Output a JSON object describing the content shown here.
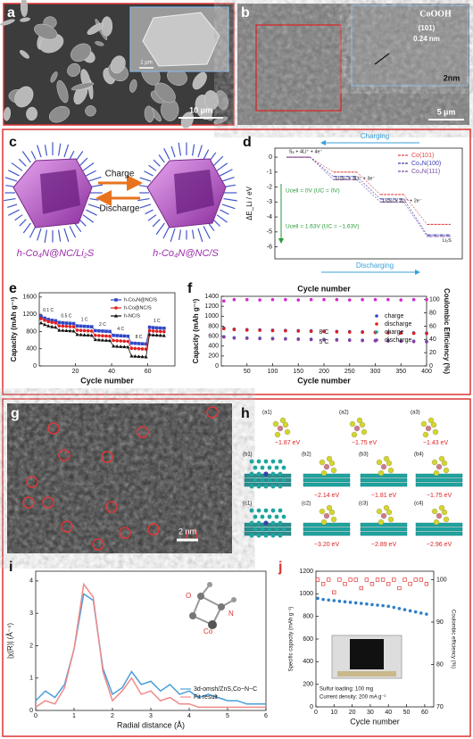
{
  "panels": {
    "a": {
      "label": "a",
      "scale_bar": "10 µm",
      "inset_scale_bar": "1 µm"
    },
    "b": {
      "label": "b",
      "phase": "CoOOH",
      "plane": "(101)",
      "spacing": "0.24 nm",
      "inset_scale_bar": "2nm",
      "scale_bar": "5 µm"
    },
    "c": {
      "label": "c",
      "charge": "Charge",
      "discharge": "Discharge",
      "left_caption": "h-Co₄N@NC/Li₂S",
      "right_caption": "h-Co₄N@NC/S"
    },
    "d": {
      "label": "d"
    },
    "e": {
      "label": "e"
    },
    "f": {
      "label": "f"
    },
    "g": {
      "label": "g",
      "scale_bar": "2 nm"
    },
    "h": {
      "label": "h",
      "structures": [
        {
          "id": "(a1)",
          "energy": "−1.87 eV"
        },
        {
          "id": "(a2)",
          "energy": "−1.75 eV"
        },
        {
          "id": "(a3)",
          "energy": "−1.43 eV"
        },
        {
          "id": "(b1)"
        },
        {
          "id": "(b2)",
          "energy": "−2.14 eV"
        },
        {
          "id": "(b3)",
          "energy": "−1.81 eV"
        },
        {
          "id": "(b4)",
          "energy": "−1.75 eV"
        },
        {
          "id": "(c1)"
        },
        {
          "id": "(c2)",
          "energy": "−3.20 eV"
        },
        {
          "id": "(c3)",
          "energy": "−2.89 eV"
        },
        {
          "id": "(c4)",
          "energy": "−2.96 eV"
        }
      ]
    },
    "i": {
      "label": "i",
      "inset_atoms": [
        "O",
        "N",
        "Co"
      ]
    },
    "j": {
      "label": "j"
    }
  },
  "chart_data": [
    {
      "type": "energy-profile",
      "ylabel": "ΔE_Li / eV",
      "categories": [
        "S₈ + 4Li⁺ + 4e⁻",
        "Li₂S₄ + 3Li⁺ + 3e⁻",
        "Li₂S₂ + 2Li⁺ + 2e⁻",
        "Li₂S"
      ],
      "series": [
        {
          "name": "Co(101)",
          "color": "#e04848",
          "values": [
            0,
            -1.0,
            -2.5,
            -4.5
          ]
        },
        {
          "name": "Co₄N(100)",
          "color": "#3c3cb4",
          "values": [
            0,
            -1.3,
            -2.8,
            -5.2
          ]
        },
        {
          "name": "Co₄N(111)",
          "color": "#7a4fa8",
          "values": [
            0,
            -1.5,
            -3.0,
            -5.3
          ]
        }
      ],
      "ylim": [
        -6.8,
        0.6
      ],
      "yticks": [
        0,
        -1,
        -2,
        -3,
        -4,
        -5,
        -6
      ],
      "legend": "upper right",
      "annotations": {
        "charging": "Charging",
        "discharging": "Discharging",
        "u0": "Ucell = 0V (UC = 0V)",
        "u1": "Ucell = 1.63V (UC = −1.63V)"
      }
    },
    {
      "type": "line",
      "xlabel": "Cycle number",
      "ylabel": "Capacity (mAh g⁻¹)",
      "x": [
        1,
        3,
        5,
        7,
        9,
        11,
        13,
        15,
        17,
        19,
        21,
        23,
        25,
        27,
        29,
        31,
        33,
        35,
        37,
        39,
        41,
        43,
        45,
        47,
        49,
        51,
        53,
        55,
        57,
        59,
        61,
        63,
        65,
        67,
        69
      ],
      "series": [
        {
          "name": "h-Co₄N@NC/S",
          "color": "#2f47c8",
          "marker": "square",
          "values": [
            1150,
            1110,
            1080,
            1060,
            1050,
            1010,
            1000,
            995,
            990,
            985,
            930,
            925,
            920,
            915,
            910,
            820,
            815,
            810,
            805,
            800,
            710,
            705,
            700,
            695,
            690,
            530,
            525,
            520,
            515,
            510,
            900,
            890,
            885,
            880,
            875
          ]
        },
        {
          "name": "h-Co@NC/S",
          "color": "#e02020",
          "marker": "circle",
          "values": [
            1100,
            1060,
            1030,
            1010,
            1000,
            930,
            925,
            920,
            915,
            910,
            830,
            825,
            820,
            815,
            810,
            710,
            705,
            700,
            695,
            690,
            590,
            585,
            580,
            575,
            570,
            410,
            405,
            400,
            395,
            390,
            820,
            810,
            805,
            800,
            795
          ]
        },
        {
          "name": "h-NC/S",
          "color": "#111111",
          "marker": "triangle",
          "values": [
            1000,
            960,
            930,
            910,
            900,
            830,
            825,
            820,
            815,
            810,
            730,
            725,
            720,
            715,
            710,
            610,
            605,
            600,
            595,
            590,
            460,
            455,
            450,
            445,
            440,
            230,
            225,
            220,
            215,
            210,
            730,
            720,
            715,
            710,
            705
          ]
        }
      ],
      "rate_labels": [
        "0.1 C",
        "0.5 C",
        "1 C",
        "2 C",
        "4 C",
        "8 C",
        "1 C"
      ],
      "xlim": [
        0,
        75
      ],
      "xticks": [
        20,
        40,
        60
      ],
      "ylim": [
        0,
        1700
      ],
      "yticks": [
        0,
        400,
        800,
        1200,
        1600
      ],
      "legend": "upper right"
    },
    {
      "type": "scatter",
      "title": "Cycle number",
      "xlabel": "Cycle number",
      "ylabel": "Capacity (mAh g⁻¹)",
      "y2label": "Coulombic Efficiency (%)",
      "x": [
        5,
        25,
        50,
        75,
        100,
        125,
        150,
        175,
        200,
        225,
        250,
        275,
        300,
        325,
        350,
        375,
        400
      ],
      "series": [
        {
          "name": "charge",
          "color": "#2f47c8",
          "values": [
            760,
            740,
            730,
            725,
            720,
            715,
            710,
            705,
            700,
            695,
            690,
            685,
            680,
            675,
            670,
            665,
            660
          ]
        },
        {
          "name": "discharge",
          "color": "#e02020",
          "values": [
            750,
            730,
            720,
            715,
            710,
            705,
            700,
            695,
            690,
            685,
            680,
            675,
            670,
            665,
            660,
            655,
            650
          ]
        },
        {
          "name": "charge",
          "color": "#1aa3a3",
          "values": [
            590,
            570,
            565,
            560,
            555,
            550,
            545,
            540,
            535,
            530,
            525,
            520,
            515,
            510,
            505,
            500,
            495
          ]
        },
        {
          "name": "discharge",
          "color": "#8b3aa8",
          "values": [
            580,
            560,
            555,
            550,
            545,
            540,
            535,
            530,
            525,
            520,
            515,
            510,
            505,
            500,
            495,
            490,
            485
          ]
        },
        {
          "color": "#d62ad0",
          "axis": "y2",
          "values": [
            98,
            100,
            100,
            99.5,
            100,
            100,
            99.5,
            100,
            100,
            100,
            99.5,
            100,
            100,
            100,
            99.5,
            100,
            100
          ]
        }
      ],
      "annotations": [
        "5 C",
        "8 C"
      ],
      "xlim": [
        0,
        400
      ],
      "xticks": [
        50,
        100,
        150,
        200,
        250,
        300,
        350,
        400
      ],
      "ylim": [
        0,
        1400
      ],
      "yticks": [
        0,
        200,
        400,
        600,
        800,
        1000,
        1200,
        1400
      ],
      "y2lim": [
        0,
        105
      ],
      "y2ticks": [
        0,
        20,
        40,
        60,
        80,
        100
      ],
      "legend": "center right"
    },
    {
      "type": "line",
      "xlabel": "Radial distance (Å)",
      "ylabel": "|χ(R)| (Å⁻⁴)",
      "x": [
        0,
        0.25,
        0.5,
        0.75,
        1,
        1.25,
        1.5,
        1.75,
        2,
        2.25,
        2.5,
        2.75,
        3,
        3.25,
        3.5,
        3.75,
        4,
        4.25,
        4.5,
        4.75,
        5,
        5.25,
        5.5,
        5.75,
        6
      ],
      "series": [
        {
          "name": "3d-omsh/ZnS,Co−N−C",
          "color": "#4a9fd8",
          "values": [
            0.3,
            0.6,
            0.4,
            0.8,
            1.9,
            3.6,
            3.4,
            1.3,
            0.5,
            0.7,
            1.2,
            0.8,
            0.9,
            0.6,
            0.8,
            0.5,
            0.6,
            0.4,
            0.5,
            0.4,
            0.3,
            0.3,
            0.2,
            0.2,
            0.2
          ]
        },
        {
          "name": "Fit result",
          "color": "#f08a8a",
          "values": [
            0.1,
            0.3,
            0.2,
            0.7,
            1.9,
            3.9,
            3.5,
            1.2,
            0.3,
            0.6,
            1.0,
            0.5,
            0.6,
            0.3,
            0.4,
            0.2,
            0.2,
            0.1,
            0.1,
            0.1,
            0.1,
            0.1,
            0.1,
            0.1,
            0.1
          ]
        }
      ],
      "xlim": [
        0,
        6
      ],
      "xticks": [
        0,
        1,
        2,
        3,
        4,
        5,
        6
      ],
      "ylim": [
        0,
        4.3
      ],
      "yticks": [
        0,
        1,
        2,
        3,
        4
      ],
      "legend": "lower right"
    },
    {
      "type": "scatter",
      "xlabel": "Cycle number",
      "ylabel": "Specific capacity (mAh g⁻¹)",
      "y2label": "Coulombic efficiency (%)",
      "x": [
        1,
        4,
        7,
        10,
        13,
        16,
        19,
        22,
        25,
        28,
        31,
        34,
        37,
        40,
        43,
        46,
        49,
        52,
        55,
        58,
        61
      ],
      "series": [
        {
          "color": "#2f7fc8",
          "values": [
            960,
            950,
            945,
            940,
            935,
            930,
            925,
            920,
            915,
            910,
            905,
            900,
            895,
            890,
            880,
            870,
            860,
            850,
            840,
            830,
            820
          ]
        },
        {
          "color": "#e03030",
          "marker": "square-open",
          "axis": "y2",
          "values": [
            100,
            99,
            100,
            97,
            100,
            99,
            100,
            100,
            98,
            100,
            99,
            100,
            100,
            99,
            100,
            98,
            100,
            99,
            100,
            100,
            99
          ]
        }
      ],
      "notes": [
        "Sulfur loading: 100 mg",
        "Current density: 200 mA g⁻¹"
      ],
      "xlim": [
        0,
        65
      ],
      "xticks": [
        0,
        10,
        20,
        30,
        40,
        50,
        60
      ],
      "ylim": [
        0,
        1200
      ],
      "yticks": [
        0,
        200,
        400,
        600,
        800,
        1000,
        1200
      ],
      "y2lim": [
        70,
        102
      ],
      "y2ticks": [
        70,
        80,
        90,
        100
      ]
    }
  ]
}
